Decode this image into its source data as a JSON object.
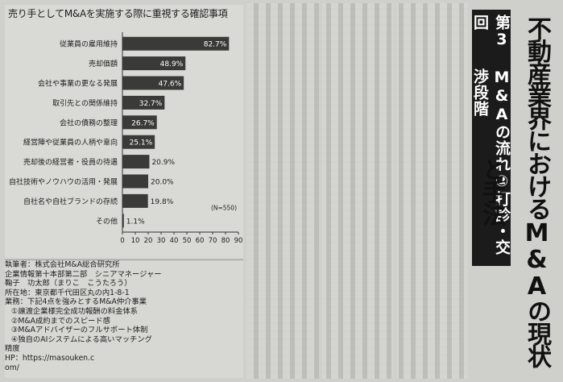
{
  "chart_data": {
    "type": "bar",
    "orientation": "horizontal",
    "title": "売り手としてM&Aを実施する際に重視する確認事項",
    "categories": [
      "従業員の雇用維持",
      "売却価額",
      "会社や事業の更なる発展",
      "取引先との関係維持",
      "会社の債務の整理",
      "経営陣や従業員の人柄や意向",
      "売却後の経営者・役員の待遇",
      "自社技術やノウハウの活用・発展",
      "自社名や自社ブランドの存続",
      "その他"
    ],
    "values": [
      82.7,
      48.9,
      47.6,
      32.7,
      26.7,
      25.1,
      20.9,
      20.0,
      19.8,
      1.1
    ],
    "value_labels": [
      "82.7%",
      "48.9%",
      "47.6%",
      "32.7%",
      "26.7%",
      "25.1%",
      "20.9%",
      "20.0%",
      "19.8%",
      "1.1%"
    ],
    "xticks": [
      "0",
      "10",
      "20",
      "30",
      "40",
      "50",
      "60",
      "70",
      "80",
      "90"
    ],
    "xlim": [
      0,
      90
    ],
    "note": "(N=550)",
    "bar_color": "#3a3a38"
  },
  "info": {
    "author": "執筆者：株式会社M&A総合研究所",
    "dept": "企業情報第十本部第二部　シニアマネージャー",
    "person": "鞠子　功太郎（まりこ　こうたろう）",
    "address": "所在地：東京都千代田区丸の内1-8-1",
    "business": "業務：下記4点を強みとするM&A仲介事業",
    "p1": "①譲渡企業様完全成功報酬の料金体系",
    "p2": "②M&A成約までのスピード感",
    "p3": "③M&Aアドバイザーのフルサポート体制",
    "p4a": "④独自のAIシステムによる高いマッチング",
    "p4b": "精度",
    "hp1": "HP：https://masouken.c",
    "hp2": "om/"
  },
  "series": {
    "part": "第3回",
    "topic": "M&Aの流れ②打診・交渉段階"
  },
  "headline": "不動産業界におけるM&Aの現状と手法"
}
